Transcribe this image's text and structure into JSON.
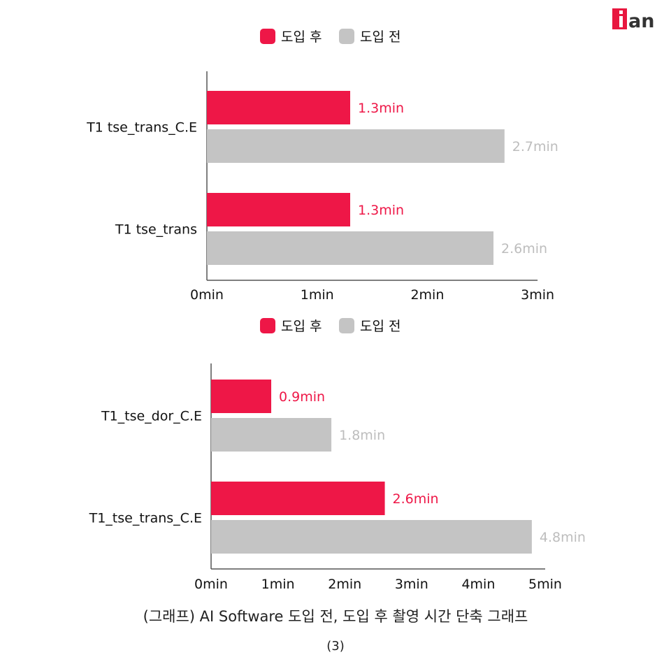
{
  "logo": {
    "text": "ian",
    "color": "#e8173f"
  },
  "colors": {
    "after": "#ee1747",
    "before": "#c4c4c4",
    "axis": "#555555"
  },
  "chart_data": [
    {
      "type": "bar",
      "orientation": "horizontal",
      "legend": [
        "도입 후",
        "도입 전"
      ],
      "legend_position": "top-center",
      "categories": [
        "T1 tse_trans_C.E",
        "T1 tse_trans"
      ],
      "series": [
        {
          "name": "도입 후",
          "values": [
            1.3,
            1.3
          ],
          "labels": [
            "1.3min",
            "1.3min"
          ]
        },
        {
          "name": "도입 전",
          "values": [
            2.7,
            2.6
          ],
          "labels": [
            "2.7min",
            "2.6min"
          ]
        }
      ],
      "xticks": [
        "0min",
        "1min",
        "2min",
        "3min"
      ],
      "xlim": [
        0,
        3
      ],
      "grid": false
    },
    {
      "type": "bar",
      "orientation": "horizontal",
      "legend": [
        "도입 후",
        "도입 전"
      ],
      "legend_position": "top-center",
      "categories": [
        "T1_tse_dor_C.E",
        "T1_tse_trans_C.E"
      ],
      "series": [
        {
          "name": "도입 후",
          "values": [
            0.9,
            2.6
          ],
          "labels": [
            "0.9min",
            "2.6min"
          ]
        },
        {
          "name": "도입 전",
          "values": [
            1.8,
            4.8
          ],
          "labels": [
            "1.8min",
            "4.8min"
          ]
        }
      ],
      "xticks": [
        "0min",
        "1min",
        "2min",
        "3min",
        "4min",
        "5min"
      ],
      "xlim": [
        0,
        5
      ],
      "grid": false
    }
  ],
  "caption": "(그래프) AI Software 도입 전, 도입 후 촬영 시간 단축 그래프",
  "caption_sub": "(3)"
}
